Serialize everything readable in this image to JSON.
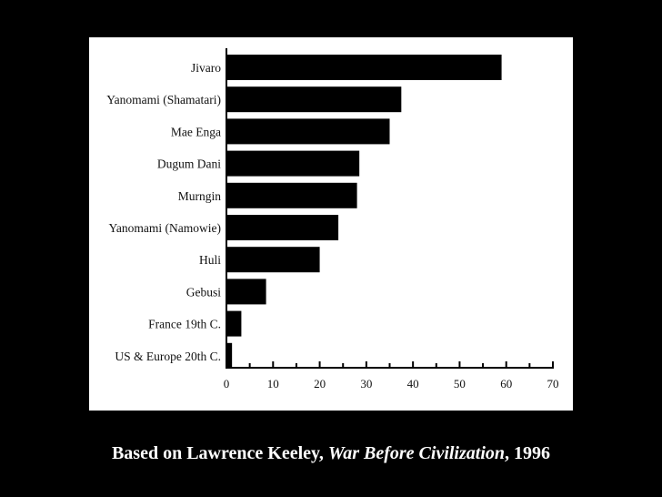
{
  "chart_data": {
    "type": "bar",
    "orientation": "horizontal",
    "categories": [
      "Jivaro",
      "Yanomami (Shamatari)",
      "Mae Enga",
      "Dugum Dani",
      "Murngin",
      "Yanomami (Namowie)",
      "Huli",
      "Gebusi",
      "France 19th C.",
      "US & Europe 20th C."
    ],
    "values": [
      59,
      37.5,
      35,
      28.5,
      28,
      24,
      20,
      8.5,
      3.2,
      1.2
    ],
    "xlim": [
      0,
      70
    ],
    "xticks": [
      "0",
      "10",
      "20",
      "30",
      "40",
      "50",
      "60",
      "70"
    ],
    "title": "",
    "xlabel": "",
    "ylabel": "",
    "grid": false,
    "bar_color": "#000000",
    "background": "#ffffff"
  },
  "caption": {
    "prefix": "Based on Lawrence Keeley, ",
    "book": "War Before Civilization",
    "suffix": ", 1996"
  },
  "colors": {
    "page_background": "#000000",
    "panel_background": "#ffffff",
    "caption_text": "#ffffff"
  }
}
